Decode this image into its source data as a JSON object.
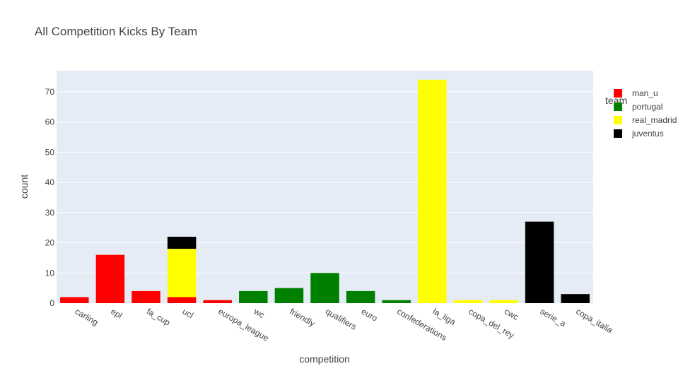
{
  "chart_data": {
    "type": "bar",
    "barmode": "stack",
    "title": "All Competition Kicks By Team",
    "xlabel": "competition",
    "ylabel": "count",
    "ylim": [
      0,
      77
    ],
    "yticks": [
      0,
      10,
      20,
      30,
      40,
      50,
      60,
      70
    ],
    "grid": true,
    "legend_title": "team",
    "legend_position": "right",
    "categories": [
      "carling",
      "epl",
      "fa_cup",
      "ucl",
      "europa_league",
      "wc",
      "friendly",
      "qualifiers",
      "euro",
      "confederations",
      "la_liga",
      "copa_del_rey",
      "cwc",
      "serie_a",
      "copa_italia"
    ],
    "series": [
      {
        "name": "man_u",
        "color": "#ff0000",
        "values": [
          2,
          16,
          4,
          2,
          1,
          0,
          0,
          0,
          0,
          0,
          0,
          0,
          0,
          0,
          0
        ]
      },
      {
        "name": "portugal",
        "color": "#008000",
        "values": [
          0,
          0,
          0,
          0,
          0,
          4,
          5,
          10,
          4,
          1,
          0,
          0,
          0,
          0,
          0
        ]
      },
      {
        "name": "real_madrid",
        "color": "#ffff00",
        "values": [
          0,
          0,
          0,
          16,
          0,
          0,
          0,
          0,
          0,
          0,
          74,
          1,
          1,
          0,
          0
        ]
      },
      {
        "name": "juventus",
        "color": "#000000",
        "values": [
          0,
          0,
          0,
          4,
          0,
          0,
          0,
          0,
          0,
          0,
          0,
          0,
          0,
          27,
          3
        ]
      }
    ]
  }
}
